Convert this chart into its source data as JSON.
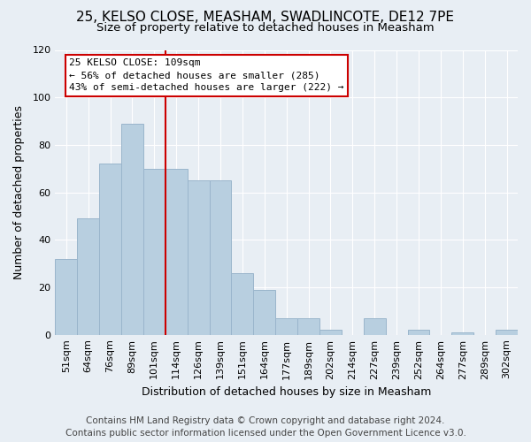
{
  "title": "25, KELSO CLOSE, MEASHAM, SWADLINCOTE, DE12 7PE",
  "subtitle": "Size of property relative to detached houses in Measham",
  "xlabel": "Distribution of detached houses by size in Measham",
  "ylabel": "Number of detached properties",
  "bar_labels": [
    "51sqm",
    "64sqm",
    "76sqm",
    "89sqm",
    "101sqm",
    "114sqm",
    "126sqm",
    "139sqm",
    "151sqm",
    "164sqm",
    "177sqm",
    "189sqm",
    "202sqm",
    "214sqm",
    "227sqm",
    "239sqm",
    "252sqm",
    "264sqm",
    "277sqm",
    "289sqm",
    "302sqm"
  ],
  "bar_values": [
    32,
    49,
    72,
    89,
    70,
    70,
    65,
    65,
    26,
    19,
    7,
    7,
    2,
    0,
    7,
    0,
    2,
    0,
    1,
    0,
    2
  ],
  "bar_color": "#b8cfe0",
  "bar_edge_color": "#9ab5cc",
  "vline_index": 4.5,
  "vline_color": "#cc0000",
  "annotation_title": "25 KELSO CLOSE: 109sqm",
  "annotation_line1": "← 56% of detached houses are smaller (285)",
  "annotation_line2": "43% of semi-detached houses are larger (222) →",
  "annotation_box_color": "#ffffff",
  "annotation_box_edge": "#cc0000",
  "ylim": [
    0,
    120
  ],
  "yticks": [
    0,
    20,
    40,
    60,
    80,
    100,
    120
  ],
  "footer1": "Contains HM Land Registry data © Crown copyright and database right 2024.",
  "footer2": "Contains public sector information licensed under the Open Government Licence v3.0.",
  "bg_color": "#e8eef4",
  "grid_color": "#ffffff",
  "title_fontsize": 11,
  "subtitle_fontsize": 9.5,
  "axis_label_fontsize": 9,
  "tick_fontsize": 8,
  "footer_fontsize": 7.5,
  "annotation_fontsize": 8
}
